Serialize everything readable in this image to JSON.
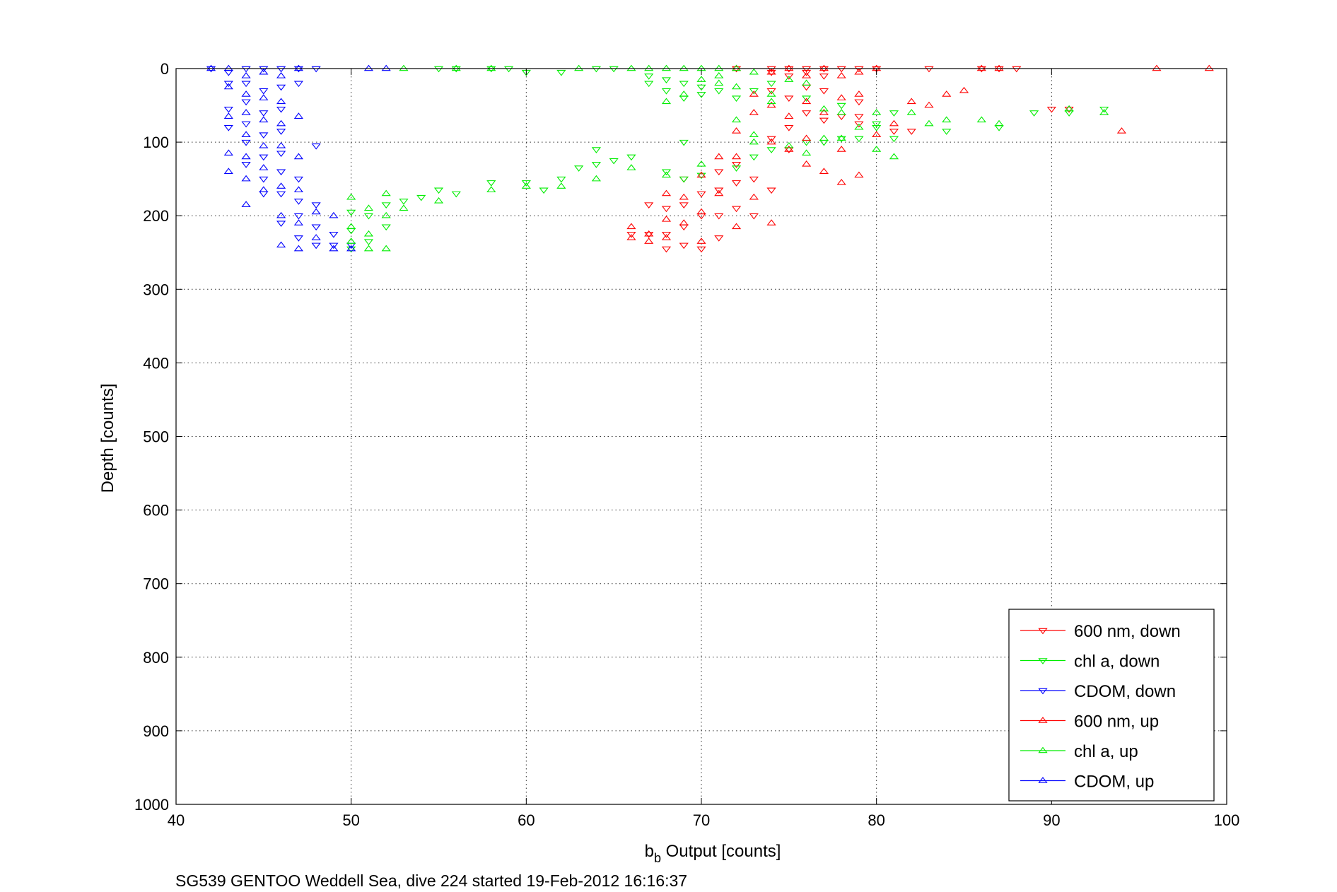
{
  "chart_data": {
    "type": "scatter",
    "title": "",
    "caption": "SG539 GENTOO Weddell Sea, dive 224 started 19-Feb-2012 16:16:37",
    "xlabel_main": "b",
    "xlabel_sub": "b",
    "xlabel_rest": " Output [counts]",
    "ylabel": "Depth [counts]",
    "xlim": [
      40,
      100
    ],
    "ylim": [
      0,
      1000
    ],
    "y_reversed": true,
    "grid": true,
    "xticks": [
      "40",
      "50",
      "60",
      "70",
      "80",
      "90",
      "100"
    ],
    "yticks": [
      "0",
      "100",
      "200",
      "300",
      "400",
      "500",
      "600",
      "700",
      "800",
      "900",
      "1000"
    ],
    "legend_position": "bottom-right",
    "series": [
      {
        "name": "600 nm, down",
        "color": "#ff0000",
        "marker": "triangle-down",
        "points": [
          [
            72,
            0
          ],
          [
            74,
            0
          ],
          [
            74,
            5
          ],
          [
            75,
            0
          ],
          [
            75,
            10
          ],
          [
            76,
            0
          ],
          [
            76,
            5
          ],
          [
            77,
            0
          ],
          [
            77,
            10
          ],
          [
            78,
            0
          ],
          [
            79,
            0
          ],
          [
            80,
            0
          ],
          [
            83,
            0
          ],
          [
            86,
            0
          ],
          [
            87,
            0
          ],
          [
            88,
            0
          ],
          [
            90,
            55
          ],
          [
            91,
            55
          ],
          [
            82,
            85
          ],
          [
            81,
            85
          ],
          [
            79,
            75
          ],
          [
            78,
            65
          ],
          [
            77,
            70
          ],
          [
            76,
            60
          ],
          [
            75,
            80
          ],
          [
            75,
            110
          ],
          [
            74,
            95
          ],
          [
            74,
            165
          ],
          [
            73,
            150
          ],
          [
            73,
            200
          ],
          [
            72,
            130
          ],
          [
            72,
            155
          ],
          [
            72,
            190
          ],
          [
            71,
            140
          ],
          [
            71,
            165
          ],
          [
            71,
            200
          ],
          [
            71,
            230
          ],
          [
            70,
            170
          ],
          [
            70,
            200
          ],
          [
            70,
            245
          ],
          [
            69,
            150
          ],
          [
            69,
            185
          ],
          [
            69,
            215
          ],
          [
            69,
            240
          ],
          [
            68,
            190
          ],
          [
            68,
            225
          ],
          [
            68,
            245
          ],
          [
            67,
            185
          ],
          [
            67,
            225
          ],
          [
            66,
            225
          ],
          [
            74,
            30
          ],
          [
            75,
            40
          ],
          [
            76,
            25
          ],
          [
            77,
            30
          ],
          [
            79,
            45
          ],
          [
            79,
            65
          ]
        ]
      },
      {
        "name": "chl a, down",
        "color": "#00ee00",
        "marker": "triangle-down",
        "points": [
          [
            55,
            0
          ],
          [
            56,
            0
          ],
          [
            58,
            0
          ],
          [
            59,
            0
          ],
          [
            60,
            5
          ],
          [
            62,
            5
          ],
          [
            64,
            0
          ],
          [
            65,
            0
          ],
          [
            67,
            10
          ],
          [
            67,
            20
          ],
          [
            68,
            15
          ],
          [
            68,
            30
          ],
          [
            69,
            20
          ],
          [
            69,
            40
          ],
          [
            70,
            25
          ],
          [
            70,
            35
          ],
          [
            71,
            30
          ],
          [
            72,
            40
          ],
          [
            73,
            30
          ],
          [
            74,
            20
          ],
          [
            76,
            40
          ],
          [
            78,
            50
          ],
          [
            79,
            95
          ],
          [
            80,
            75
          ],
          [
            81,
            95
          ],
          [
            84,
            85
          ],
          [
            87,
            80
          ],
          [
            89,
            60
          ],
          [
            91,
            60
          ],
          [
            93,
            55
          ],
          [
            69,
            100
          ],
          [
            65,
            125
          ],
          [
            64,
            110
          ],
          [
            63,
            135
          ],
          [
            62,
            150
          ],
          [
            61,
            165
          ],
          [
            60,
            155
          ],
          [
            58,
            155
          ],
          [
            56,
            170
          ],
          [
            55,
            165
          ],
          [
            54,
            175
          ],
          [
            53,
            180
          ],
          [
            52,
            185
          ],
          [
            52,
            215
          ],
          [
            51,
            200
          ],
          [
            51,
            235
          ],
          [
            50,
            195
          ],
          [
            50,
            220
          ],
          [
            50,
            245
          ],
          [
            64,
            130
          ],
          [
            66,
            120
          ],
          [
            68,
            140
          ],
          [
            69,
            150
          ],
          [
            70,
            145
          ],
          [
            72,
            135
          ],
          [
            73,
            120
          ],
          [
            74,
            110
          ],
          [
            76,
            100
          ],
          [
            77,
            100
          ],
          [
            78,
            95
          ],
          [
            80,
            80
          ],
          [
            81,
            60
          ]
        ]
      },
      {
        "name": "CDOM, down",
        "color": "#0000ff",
        "marker": "triangle-down",
        "points": [
          [
            42,
            0
          ],
          [
            43,
            5
          ],
          [
            43,
            20
          ],
          [
            43,
            55
          ],
          [
            43,
            80
          ],
          [
            44,
            0
          ],
          [
            44,
            20
          ],
          [
            44,
            45
          ],
          [
            44,
            75
          ],
          [
            44,
            100
          ],
          [
            44,
            130
          ],
          [
            45,
            0
          ],
          [
            45,
            30
          ],
          [
            45,
            60
          ],
          [
            45,
            90
          ],
          [
            45,
            120
          ],
          [
            45,
            150
          ],
          [
            45,
            170
          ],
          [
            46,
            0
          ],
          [
            46,
            25
          ],
          [
            46,
            55
          ],
          [
            46,
            85
          ],
          [
            46,
            115
          ],
          [
            46,
            140
          ],
          [
            46,
            170
          ],
          [
            46,
            210
          ],
          [
            47,
            0
          ],
          [
            47,
            20
          ],
          [
            47,
            150
          ],
          [
            47,
            180
          ],
          [
            47,
            200
          ],
          [
            47,
            230
          ],
          [
            48,
            0
          ],
          [
            48,
            105
          ],
          [
            48,
            185
          ],
          [
            48,
            215
          ],
          [
            48,
            240
          ],
          [
            49,
            225
          ],
          [
            49,
            240
          ],
          [
            50,
            240
          ]
        ]
      },
      {
        "name": "600 nm, up",
        "color": "#ff0000",
        "marker": "triangle-up",
        "points": [
          [
            72,
            0
          ],
          [
            74,
            5
          ],
          [
            75,
            0
          ],
          [
            76,
            10
          ],
          [
            77,
            0
          ],
          [
            78,
            10
          ],
          [
            79,
            5
          ],
          [
            80,
            0
          ],
          [
            82,
            45
          ],
          [
            83,
            50
          ],
          [
            84,
            35
          ],
          [
            85,
            30
          ],
          [
            86,
            0
          ],
          [
            87,
            0
          ],
          [
            94,
            85
          ],
          [
            96,
            0
          ],
          [
            99,
            0
          ],
          [
            81,
            75
          ],
          [
            80,
            90
          ],
          [
            79,
            145
          ],
          [
            78,
            155
          ],
          [
            78,
            110
          ],
          [
            77,
            140
          ],
          [
            76,
            130
          ],
          [
            76,
            95
          ],
          [
            75,
            110
          ],
          [
            74,
            50
          ],
          [
            74,
            100
          ],
          [
            74,
            210
          ],
          [
            73,
            35
          ],
          [
            73,
            175
          ],
          [
            72,
            215
          ],
          [
            72,
            120
          ],
          [
            71,
            120
          ],
          [
            71,
            170
          ],
          [
            70,
            145
          ],
          [
            70,
            195
          ],
          [
            70,
            235
          ],
          [
            69,
            175
          ],
          [
            69,
            210
          ],
          [
            68,
            170
          ],
          [
            68,
            205
          ],
          [
            68,
            230
          ],
          [
            67,
            225
          ],
          [
            67,
            235
          ],
          [
            66,
            215
          ],
          [
            66,
            230
          ],
          [
            75,
            65
          ],
          [
            76,
            45
          ],
          [
            77,
            60
          ],
          [
            78,
            40
          ],
          [
            79,
            35
          ],
          [
            73,
            60
          ],
          [
            72,
            85
          ]
        ]
      },
      {
        "name": "chl a, up",
        "color": "#00ee00",
        "marker": "triangle-up",
        "points": [
          [
            53,
            0
          ],
          [
            56,
            0
          ],
          [
            58,
            0
          ],
          [
            63,
            0
          ],
          [
            66,
            0
          ],
          [
            67,
            0
          ],
          [
            68,
            0
          ],
          [
            69,
            0
          ],
          [
            70,
            0
          ],
          [
            71,
            0
          ],
          [
            72,
            0
          ],
          [
            73,
            5
          ],
          [
            68,
            45
          ],
          [
            69,
            35
          ],
          [
            70,
            15
          ],
          [
            71,
            10
          ],
          [
            72,
            25
          ],
          [
            74,
            35
          ],
          [
            75,
            15
          ],
          [
            76,
            20
          ],
          [
            77,
            55
          ],
          [
            78,
            60
          ],
          [
            80,
            60
          ],
          [
            82,
            60
          ],
          [
            83,
            75
          ],
          [
            84,
            70
          ],
          [
            86,
            70
          ],
          [
            87,
            75
          ],
          [
            91,
            55
          ],
          [
            93,
            60
          ],
          [
            80,
            110
          ],
          [
            81,
            120
          ],
          [
            78,
            95
          ],
          [
            76,
            115
          ],
          [
            73,
            100
          ],
          [
            70,
            130
          ],
          [
            68,
            145
          ],
          [
            66,
            135
          ],
          [
            64,
            150
          ],
          [
            62,
            160
          ],
          [
            60,
            160
          ],
          [
            58,
            165
          ],
          [
            55,
            180
          ],
          [
            53,
            190
          ],
          [
            52,
            170
          ],
          [
            52,
            200
          ],
          [
            52,
            245
          ],
          [
            51,
            190
          ],
          [
            51,
            225
          ],
          [
            51,
            245
          ],
          [
            50,
            175
          ],
          [
            50,
            215
          ],
          [
            50,
            235
          ],
          [
            79,
            80
          ],
          [
            77,
            95
          ],
          [
            75,
            105
          ],
          [
            74,
            45
          ],
          [
            73,
            90
          ],
          [
            72,
            70
          ],
          [
            71,
            20
          ]
        ]
      },
      {
        "name": "CDOM, up",
        "color": "#0000ff",
        "marker": "triangle-up",
        "points": [
          [
            42,
            0
          ],
          [
            43,
            0
          ],
          [
            43,
            25
          ],
          [
            43,
            65
          ],
          [
            43,
            115
          ],
          [
            43,
            140
          ],
          [
            44,
            10
          ],
          [
            44,
            35
          ],
          [
            44,
            60
          ],
          [
            44,
            90
          ],
          [
            44,
            120
          ],
          [
            44,
            150
          ],
          [
            44,
            185
          ],
          [
            45,
            5
          ],
          [
            45,
            40
          ],
          [
            45,
            70
          ],
          [
            45,
            105
          ],
          [
            45,
            135
          ],
          [
            45,
            165
          ],
          [
            46,
            10
          ],
          [
            46,
            45
          ],
          [
            46,
            75
          ],
          [
            46,
            105
          ],
          [
            46,
            160
          ],
          [
            46,
            200
          ],
          [
            46,
            240
          ],
          [
            47,
            0
          ],
          [
            47,
            65
          ],
          [
            47,
            120
          ],
          [
            47,
            165
          ],
          [
            47,
            210
          ],
          [
            47,
            245
          ],
          [
            48,
            195
          ],
          [
            48,
            230
          ],
          [
            49,
            200
          ],
          [
            49,
            245
          ],
          [
            50,
            245
          ],
          [
            51,
            0
          ],
          [
            52,
            0
          ]
        ]
      }
    ]
  }
}
